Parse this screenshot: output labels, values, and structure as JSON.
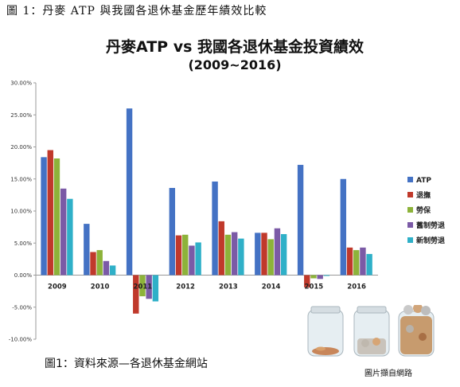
{
  "header": {
    "caption": "圖 1：丹麥 ATP 與我國各退休基金歷年績效比較"
  },
  "footer": {
    "caption": "圖1：資料來源—各退休基金網站",
    "photo_credit": "圖片擷自網路"
  },
  "chart_data": {
    "type": "bar",
    "title": "丹麥ATP vs 我國各退休基金投資績效",
    "subtitle": "(2009~2016)",
    "categories": [
      "2009",
      "2010",
      "2011",
      "2012",
      "2013",
      "2014",
      "2015",
      "2016"
    ],
    "series": [
      {
        "name": "ATP",
        "color": "#4472C4",
        "values": [
          18.4,
          8.0,
          26.0,
          13.6,
          14.6,
          6.6,
          17.2,
          15.0
        ]
      },
      {
        "name": "退撫",
        "color": "#C0392B",
        "values": [
          19.5,
          3.6,
          -6.0,
          6.2,
          8.4,
          6.6,
          -1.9,
          4.3
        ]
      },
      {
        "name": "勞保",
        "color": "#8DB33A",
        "values": [
          18.2,
          3.9,
          -3.3,
          6.3,
          6.3,
          5.6,
          -0.5,
          3.9
        ]
      },
      {
        "name": "舊制勞退",
        "color": "#7B5AA6",
        "values": [
          13.5,
          2.2,
          -3.7,
          4.6,
          6.7,
          7.3,
          -0.6,
          4.3
        ]
      },
      {
        "name": "新制勞退",
        "color": "#2FB0C8",
        "values": [
          11.9,
          1.5,
          -4.1,
          5.1,
          5.7,
          6.4,
          -0.1,
          3.3
        ]
      }
    ],
    "yticks": [
      "30.00%",
      "25.00%",
      "20.00%",
      "15.00%",
      "10.00%",
      "5.00%",
      "0.00%",
      "-5.00%",
      "-10.00%"
    ],
    "ylim": [
      -10,
      30
    ],
    "grid": false,
    "legend": "right"
  }
}
